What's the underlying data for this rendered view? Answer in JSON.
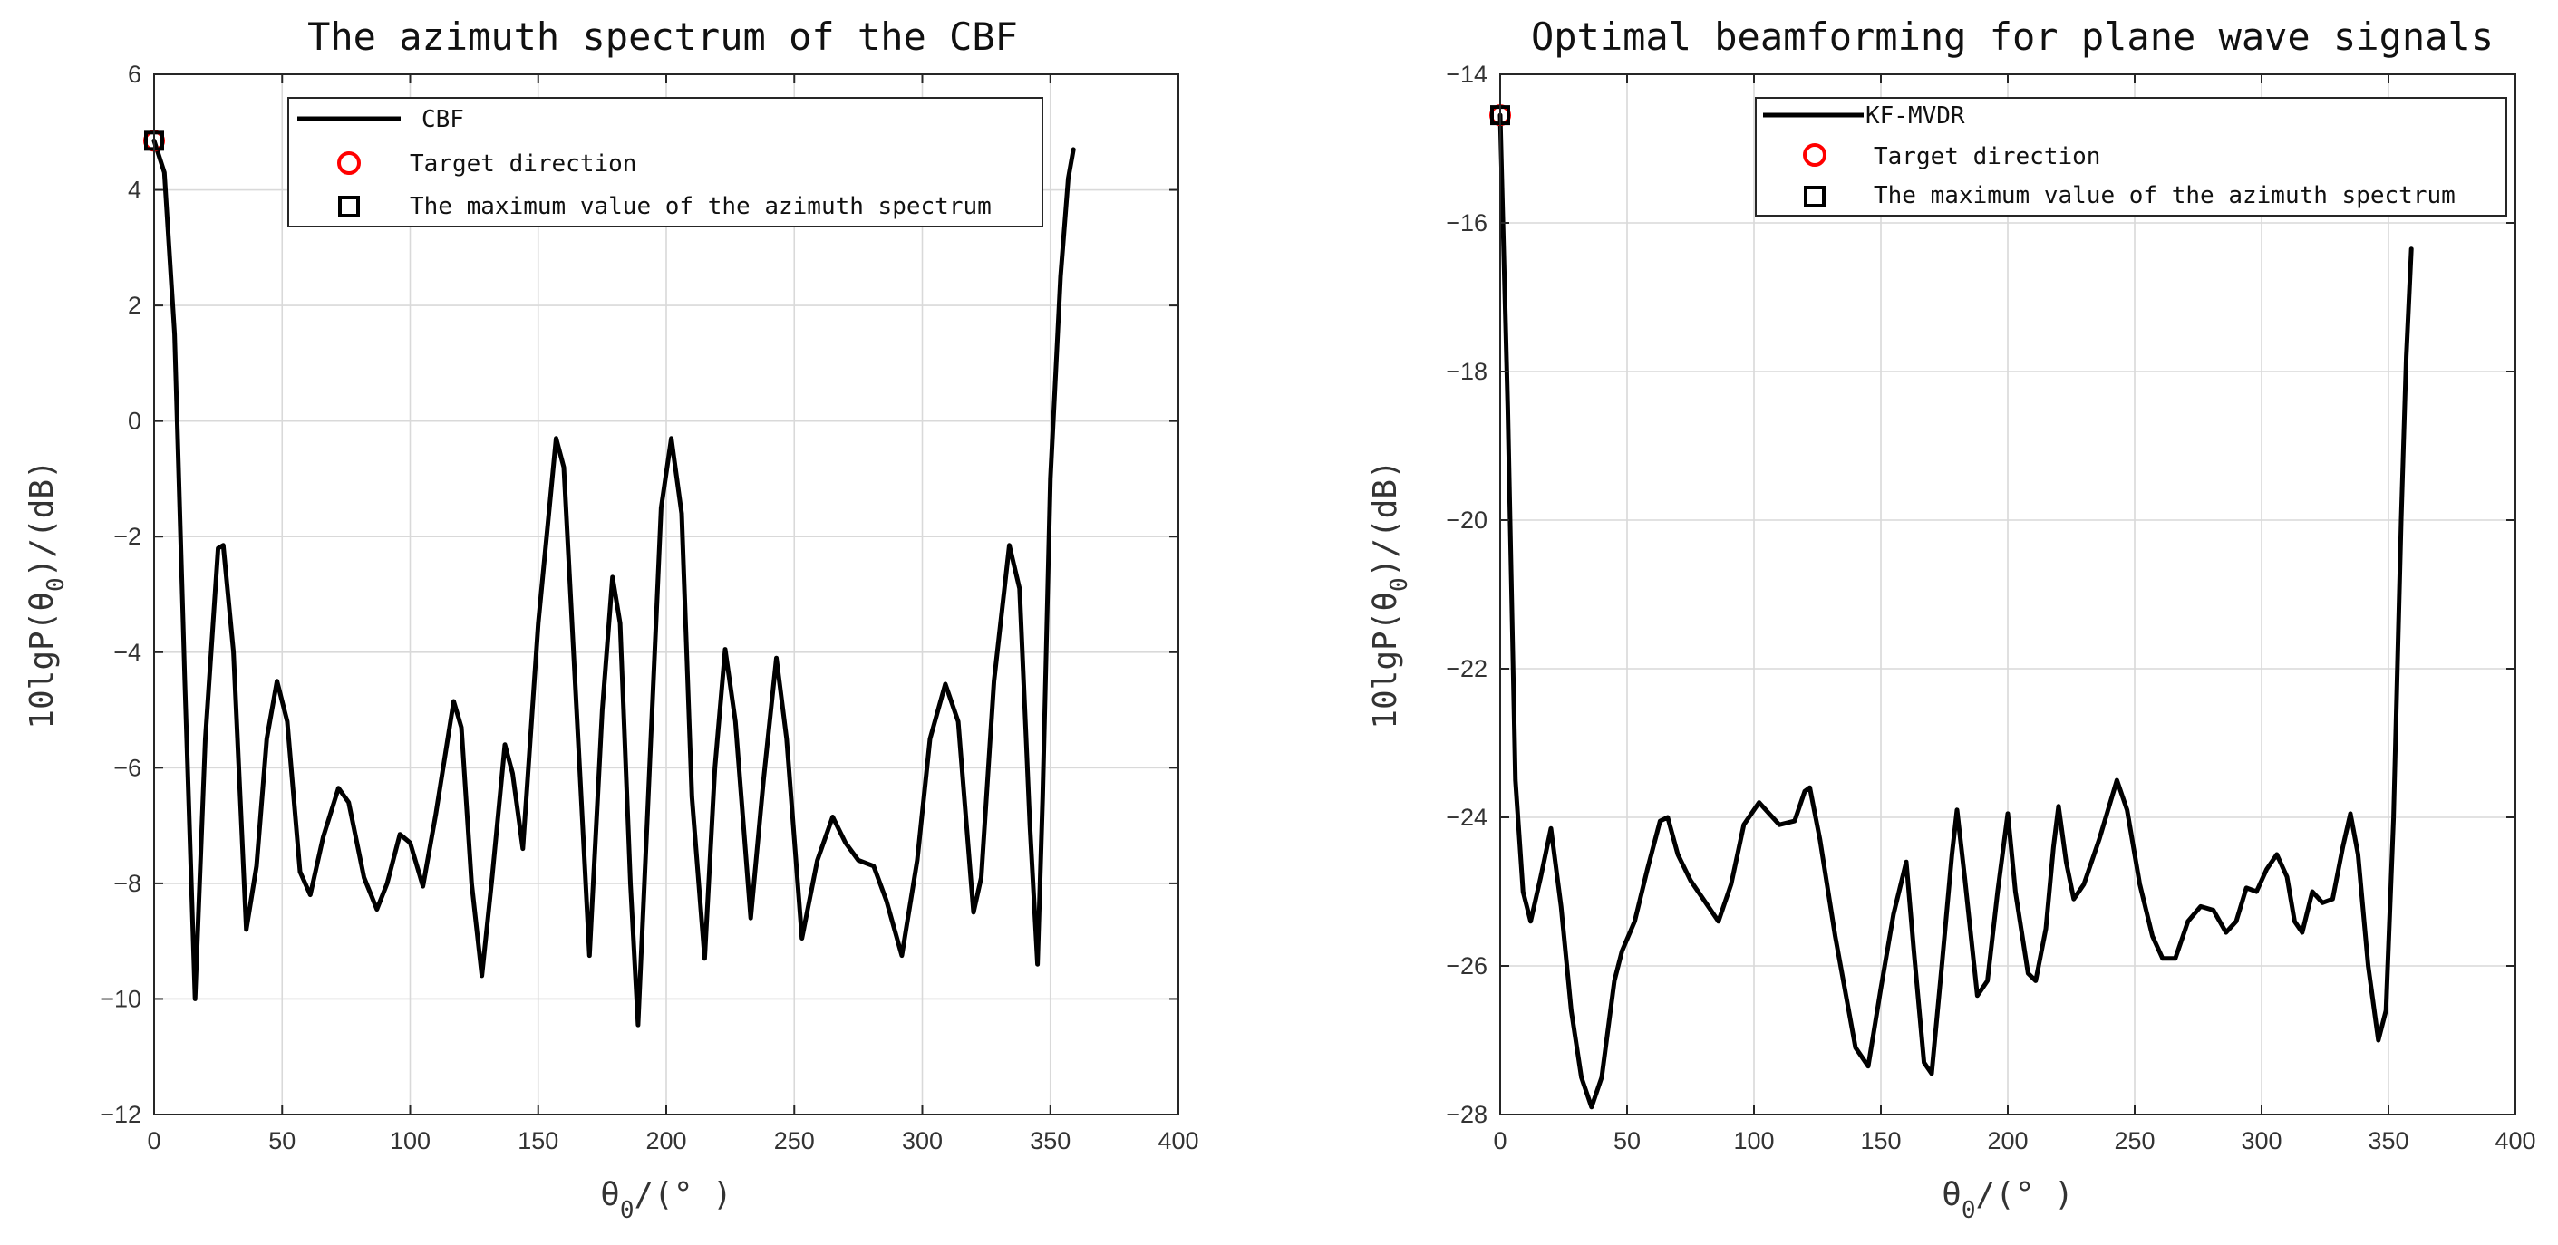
{
  "chart_data": [
    {
      "type": "line",
      "title": "The azimuth spectrum of the CBF",
      "xlabel_main": "θ",
      "xlabel_sub": "0",
      "xlabel_rest": "/(° )",
      "ylabel_pre": "10lgP(θ",
      "ylabel_sub": "0",
      "ylabel_post": ")/(dB)",
      "xlim": [
        0,
        400
      ],
      "ylim": [
        -12,
        6
      ],
      "xticks": [
        0,
        50,
        100,
        150,
        200,
        250,
        300,
        350,
        400
      ],
      "yticks": [
        -12,
        -10,
        -8,
        -6,
        -4,
        -2,
        0,
        2,
        4,
        6
      ],
      "grid": true,
      "legend_position": "top-right",
      "series": [
        {
          "name": "CBF",
          "color": "#000000",
          "points": [
            [
              0,
              4.85
            ],
            [
              4,
              4.3
            ],
            [
              8,
              1.5
            ],
            [
              12,
              -4.5
            ],
            [
              16,
              -10.0
            ],
            [
              20,
              -5.5
            ],
            [
              25,
              -2.2
            ],
            [
              27,
              -2.15
            ],
            [
              31,
              -4.0
            ],
            [
              36,
              -8.8
            ],
            [
              40,
              -7.7
            ],
            [
              44,
              -5.5
            ],
            [
              48,
              -4.5
            ],
            [
              52,
              -5.2
            ],
            [
              57,
              -7.8
            ],
            [
              61,
              -8.2
            ],
            [
              66,
              -7.2
            ],
            [
              72,
              -6.35
            ],
            [
              76,
              -6.6
            ],
            [
              82,
              -7.9
            ],
            [
              87,
              -8.45
            ],
            [
              91,
              -8.0
            ],
            [
              96,
              -7.15
            ],
            [
              100,
              -7.3
            ],
            [
              105,
              -8.05
            ],
            [
              110,
              -6.8
            ],
            [
              117,
              -4.85
            ],
            [
              120,
              -5.3
            ],
            [
              124,
              -8.0
            ],
            [
              128,
              -9.6
            ],
            [
              132,
              -7.9
            ],
            [
              137,
              -5.6
            ],
            [
              140,
              -6.1
            ],
            [
              144,
              -7.4
            ],
            [
              150,
              -3.5
            ],
            [
              157,
              -0.3
            ],
            [
              160,
              -0.8
            ],
            [
              165,
              -5.0
            ],
            [
              170,
              -9.25
            ],
            [
              175,
              -5.0
            ],
            [
              179,
              -2.7
            ],
            [
              182,
              -3.5
            ],
            [
              186,
              -8.0
            ],
            [
              189,
              -10.45
            ],
            [
              193,
              -6.5
            ],
            [
              198,
              -1.5
            ],
            [
              202,
              -0.3
            ],
            [
              206,
              -1.6
            ],
            [
              210,
              -6.5
            ],
            [
              215,
              -9.3
            ],
            [
              219,
              -6.0
            ],
            [
              223,
              -3.95
            ],
            [
              227,
              -5.2
            ],
            [
              233,
              -8.6
            ],
            [
              238,
              -6.2
            ],
            [
              243,
              -4.1
            ],
            [
              247,
              -5.5
            ],
            [
              253,
              -8.95
            ],
            [
              259,
              -7.6
            ],
            [
              265,
              -6.85
            ],
            [
              270,
              -7.3
            ],
            [
              275,
              -7.6
            ],
            [
              281,
              -7.7
            ],
            [
              286,
              -8.3
            ],
            [
              292,
              -9.25
            ],
            [
              298,
              -7.6
            ],
            [
              303,
              -5.5
            ],
            [
              309,
              -4.55
            ],
            [
              314,
              -5.2
            ],
            [
              320,
              -8.5
            ],
            [
              323,
              -7.9
            ],
            [
              328,
              -4.5
            ],
            [
              334,
              -2.15
            ],
            [
              338,
              -2.9
            ],
            [
              342,
              -7.0
            ],
            [
              345,
              -9.4
            ],
            [
              347,
              -6.5
            ],
            [
              350,
              -1.0
            ],
            [
              354,
              2.5
            ],
            [
              357,
              4.2
            ],
            [
              359,
              4.7
            ]
          ]
        },
        {
          "name": "Target direction",
          "marker": "circle",
          "color": "#ff0000",
          "points": [
            [
              0,
              4.85
            ]
          ]
        },
        {
          "name": "The maximum value of the azimuth spectrum",
          "marker": "square",
          "color": "#000000",
          "points": [
            [
              0,
              4.85
            ]
          ]
        }
      ]
    },
    {
      "type": "line",
      "title": "Optimal beamforming for plane wave signals",
      "xlabel_main": "θ",
      "xlabel_sub": "0",
      "xlabel_rest": "/(° )",
      "ylabel_pre": "10lgP(θ",
      "ylabel_sub": "0",
      "ylabel_post": ")/(dB)",
      "xlim": [
        0,
        400
      ],
      "ylim": [
        -28,
        -14
      ],
      "xticks": [
        0,
        50,
        100,
        150,
        200,
        250,
        300,
        350,
        400
      ],
      "yticks": [
        -28,
        -26,
        -24,
        -22,
        -20,
        -18,
        -16,
        -14
      ],
      "grid": true,
      "legend_position": "top-right",
      "series": [
        {
          "name": "KF-MVDR",
          "color": "#000000",
          "points": [
            [
              0,
              -14.55
            ],
            [
              3,
              -18.5
            ],
            [
              6,
              -23.5
            ],
            [
              9,
              -25.0
            ],
            [
              12,
              -25.4
            ],
            [
              16,
              -24.8
            ],
            [
              20,
              -24.15
            ],
            [
              24,
              -25.2
            ],
            [
              28,
              -26.6
            ],
            [
              32,
              -27.5
            ],
            [
              36,
              -27.9
            ],
            [
              40,
              -27.5
            ],
            [
              45,
              -26.2
            ],
            [
              48,
              -25.8
            ],
            [
              53,
              -25.4
            ],
            [
              58,
              -24.7
            ],
            [
              63,
              -24.05
            ],
            [
              66,
              -24.0
            ],
            [
              70,
              -24.5
            ],
            [
              75,
              -24.85
            ],
            [
              80,
              -25.1
            ],
            [
              86,
              -25.4
            ],
            [
              91,
              -24.9
            ],
            [
              96,
              -24.1
            ],
            [
              102,
              -23.8
            ],
            [
              106,
              -23.95
            ],
            [
              110,
              -24.1
            ],
            [
              116,
              -24.05
            ],
            [
              120,
              -23.65
            ],
            [
              122,
              -23.6
            ],
            [
              126,
              -24.3
            ],
            [
              132,
              -25.6
            ],
            [
              140,
              -27.1
            ],
            [
              145,
              -27.35
            ],
            [
              150,
              -26.3
            ],
            [
              155,
              -25.3
            ],
            [
              160,
              -24.6
            ],
            [
              163,
              -25.8
            ],
            [
              167,
              -27.3
            ],
            [
              170,
              -27.45
            ],
            [
              174,
              -26.0
            ],
            [
              178,
              -24.5
            ],
            [
              180,
              -23.9
            ],
            [
              183,
              -24.8
            ],
            [
              188,
              -26.4
            ],
            [
              192,
              -26.2
            ],
            [
              196,
              -25.0
            ],
            [
              200,
              -23.95
            ],
            [
              203,
              -25.0
            ],
            [
              208,
              -26.1
            ],
            [
              211,
              -26.2
            ],
            [
              215,
              -25.5
            ],
            [
              218,
              -24.4
            ],
            [
              220,
              -23.85
            ],
            [
              223,
              -24.6
            ],
            [
              226,
              -25.1
            ],
            [
              230,
              -24.9
            ],
            [
              236,
              -24.3
            ],
            [
              243,
              -23.5
            ],
            [
              247,
              -23.9
            ],
            [
              252,
              -24.9
            ],
            [
              257,
              -25.6
            ],
            [
              261,
              -25.9
            ],
            [
              266,
              -25.9
            ],
            [
              271,
              -25.4
            ],
            [
              276,
              -25.2
            ],
            [
              281,
              -25.25
            ],
            [
              286,
              -25.55
            ],
            [
              290,
              -25.4
            ],
            [
              294,
              -24.95
            ],
            [
              298,
              -25.0
            ],
            [
              302,
              -24.7
            ],
            [
              306,
              -24.5
            ],
            [
              310,
              -24.8
            ],
            [
              313,
              -25.4
            ],
            [
              316,
              -25.55
            ],
            [
              320,
              -25.0
            ],
            [
              324,
              -25.15
            ],
            [
              328,
              -25.1
            ],
            [
              332,
              -24.4
            ],
            [
              335,
              -23.95
            ],
            [
              338,
              -24.5
            ],
            [
              342,
              -26.0
            ],
            [
              346,
              -27.0
            ],
            [
              349,
              -26.6
            ],
            [
              352,
              -24.0
            ],
            [
              355,
              -20.0
            ],
            [
              357,
              -17.8
            ],
            [
              359,
              -16.35
            ]
          ]
        },
        {
          "name": "Target direction",
          "marker": "circle",
          "color": "#ff0000",
          "points": [
            [
              0,
              -14.55
            ]
          ]
        },
        {
          "name": "The maximum value of the azimuth spectrum",
          "marker": "square",
          "color": "#000000",
          "points": [
            [
              0,
              -14.55
            ]
          ]
        }
      ]
    }
  ]
}
